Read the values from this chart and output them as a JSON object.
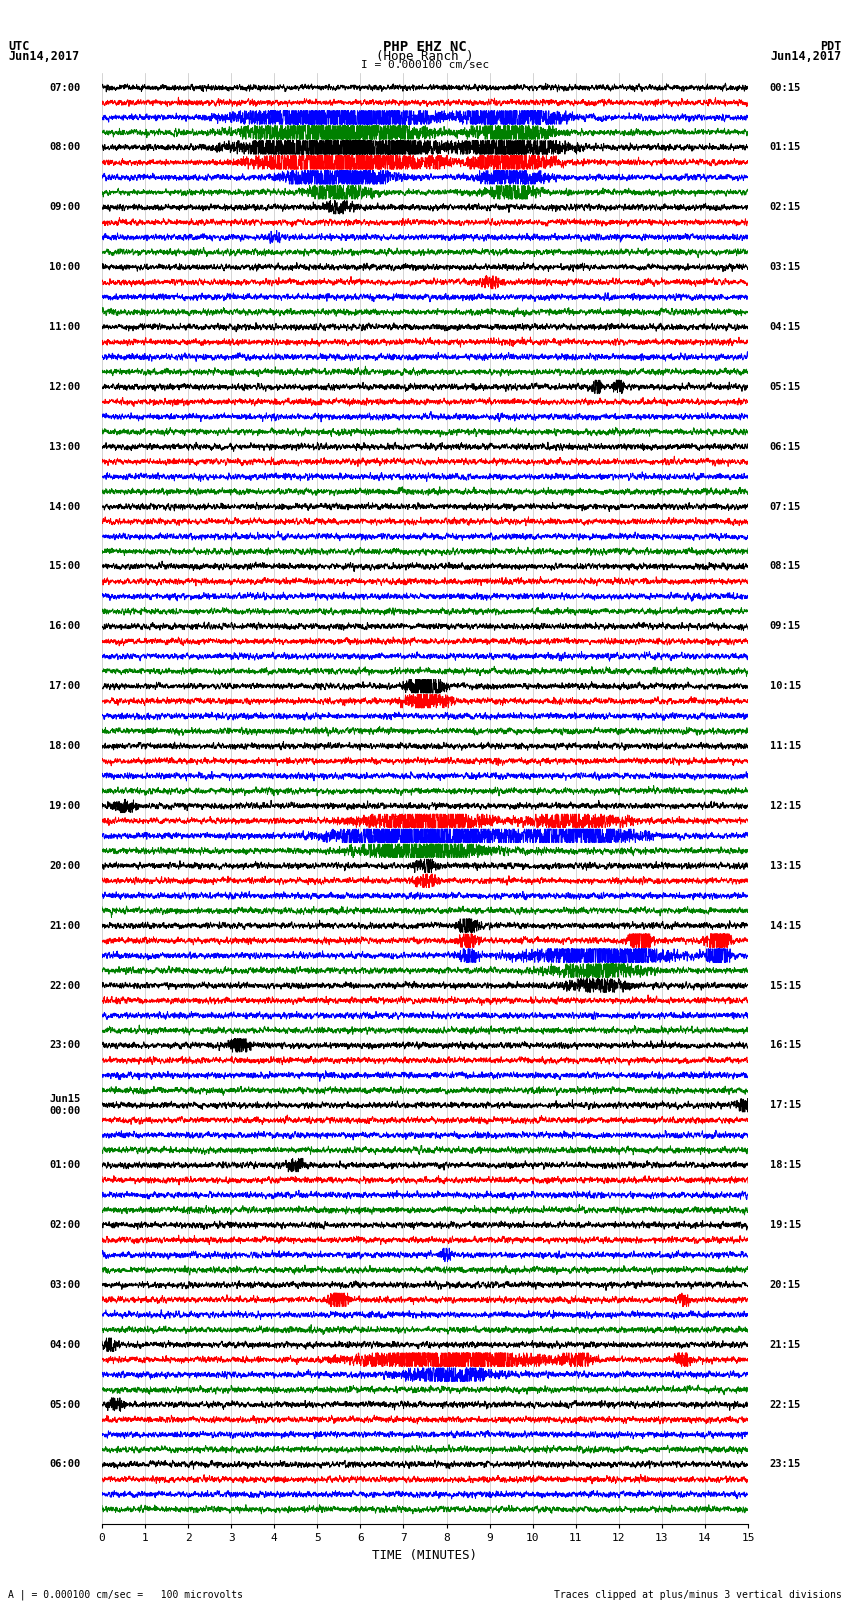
{
  "title_line1": "PHP EHZ NC",
  "title_line2": "(Hope Ranch )",
  "title_line3": "I = 0.000100 cm/sec",
  "left_label_top": "UTC",
  "left_label_date": "Jun14,2017",
  "right_label_top": "PDT",
  "right_label_date": "Jun14,2017",
  "xlabel": "TIME (MINUTES)",
  "footer_left": "A | = 0.000100 cm/sec =   100 microvolts",
  "footer_right": "Traces clipped at plus/minus 3 vertical divisions",
  "utc_times": [
    "07:00",
    "08:00",
    "09:00",
    "10:00",
    "11:00",
    "12:00",
    "13:00",
    "14:00",
    "15:00",
    "16:00",
    "17:00",
    "18:00",
    "19:00",
    "20:00",
    "21:00",
    "22:00",
    "23:00",
    "Jun15\n00:00",
    "01:00",
    "02:00",
    "03:00",
    "04:00",
    "05:00",
    "06:00"
  ],
  "pdt_times": [
    "00:15",
    "01:15",
    "02:15",
    "03:15",
    "04:15",
    "05:15",
    "06:15",
    "07:15",
    "08:15",
    "09:15",
    "10:15",
    "11:15",
    "12:15",
    "13:15",
    "14:15",
    "15:15",
    "16:15",
    "17:15",
    "18:15",
    "19:15",
    "20:15",
    "21:15",
    "22:15",
    "23:15"
  ],
  "trace_colors": [
    "black",
    "red",
    "blue",
    "green"
  ],
  "n_rows": 96,
  "x_min": 0,
  "x_max": 15,
  "background_color": "white",
  "vertical_grid_color": "#aaaaaa",
  "vertical_grid_positions": [
    0,
    1,
    2,
    3,
    4,
    5,
    6,
    7,
    8,
    9,
    10,
    11,
    12,
    13,
    14,
    15
  ],
  "trace_lw": 0.7,
  "base_noise": 0.28,
  "clip_val": 0.9
}
